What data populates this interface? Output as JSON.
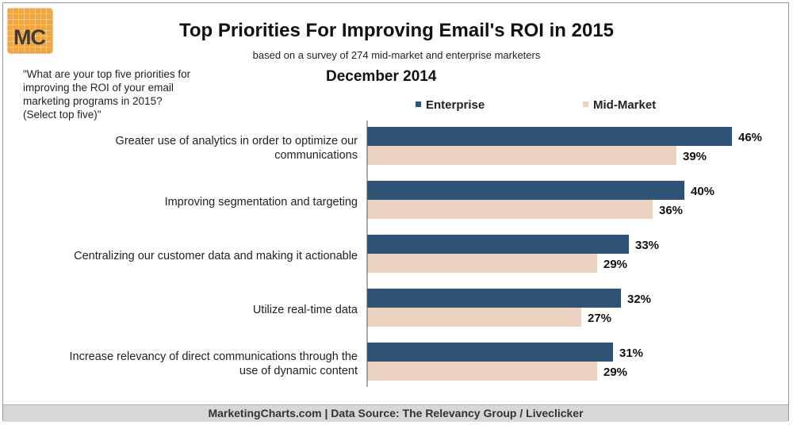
{
  "header": {
    "logo_text": "MC",
    "title": "Top Priorities For Improving Email's ROI in 2015",
    "subtitle": "based on a survey of 274 mid-market and enterprise marketers",
    "question": "\"What are your top five priorities for\nimproving the ROI of your email\nmarketing programs in 2015?\n(Select top five)\"",
    "date": "December 2014"
  },
  "footer": {
    "text": "MarketingCharts.com | Data Source: The Relevancy Group / Liveclicker"
  },
  "chart_data": {
    "type": "bar",
    "orientation": "horizontal",
    "categories": [
      [
        "Greater use of analytics in order to optimize our",
        "communications"
      ],
      [
        "Improving segmentation and targeting"
      ],
      [
        "Centralizing our customer data and making it actionable"
      ],
      [
        "Utilize real-time data"
      ],
      [
        "Increase relevancy of direct communications through the",
        "use of dynamic content"
      ]
    ],
    "series": [
      {
        "name": "Enterprise",
        "color": "#2e5374",
        "values": [
          46,
          40,
          33,
          32,
          31
        ]
      },
      {
        "name": "Mid-Market",
        "color": "#ecd2c0",
        "values": [
          39,
          36,
          29,
          27,
          29
        ]
      }
    ],
    "value_suffix": "%",
    "xlim": [
      0,
      50
    ],
    "grid": false,
    "legend_position": "top"
  }
}
